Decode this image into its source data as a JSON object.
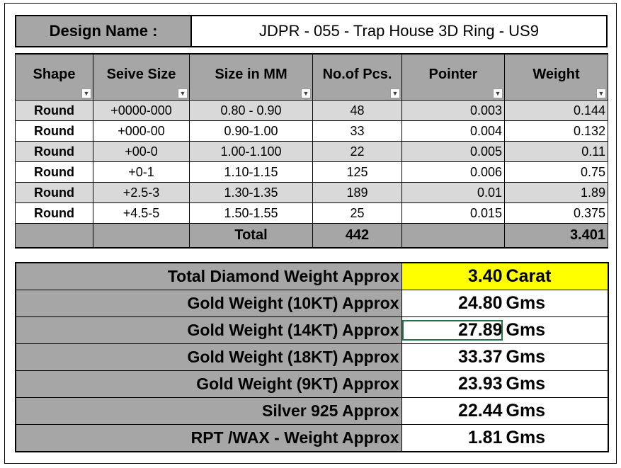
{
  "design": {
    "label": "Design Name :",
    "value": "JDPR - 055 - Trap House 3D Ring - US9"
  },
  "table": {
    "headers": [
      "Shape",
      "Seive Size",
      "Size in MM",
      "No.of Pcs.",
      "Pointer",
      "Weight"
    ],
    "rows": [
      {
        "shape": "Round",
        "seive": "+0000-000",
        "mm": "0.80 - 0.90",
        "pcs": "48",
        "pointer": "0.003",
        "weight": "0.144"
      },
      {
        "shape": "Round",
        "seive": "+000-00",
        "mm": "0.90-1.00",
        "pcs": "33",
        "pointer": "0.004",
        "weight": "0.132"
      },
      {
        "shape": "Round",
        "seive": "+00-0",
        "mm": "1.00-1.100",
        "pcs": "22",
        "pointer": "0.005",
        "weight": "0.11"
      },
      {
        "shape": "Round",
        "seive": "+0-1",
        "mm": "1.10-1.15",
        "pcs": "125",
        "pointer": "0.006",
        "weight": "0.75"
      },
      {
        "shape": "Round",
        "seive": "+2.5-3",
        "mm": "1.30-1.35",
        "pcs": "189",
        "pointer": "0.01",
        "weight": "1.89"
      },
      {
        "shape": "Round",
        "seive": "+4.5-5",
        "mm": "1.50-1.55",
        "pcs": "25",
        "pointer": "0.015",
        "weight": "0.375"
      }
    ],
    "total": {
      "label": "Total",
      "pcs": "442",
      "weight": "3.401"
    }
  },
  "summary": [
    {
      "label": "Total Diamond Weight Approx",
      "value": "3.40",
      "unit": "Carat"
    },
    {
      "label": "Gold Weight (10KT) Approx",
      "value": "24.80",
      "unit": "Gms"
    },
    {
      "label": "Gold Weight (14KT) Approx",
      "value": "27.89",
      "unit": "Gms"
    },
    {
      "label": "Gold Weight (18KT) Approx",
      "value": "33.37",
      "unit": "Gms"
    },
    {
      "label": "Gold Weight (9KT) Approx",
      "value": "23.93",
      "unit": "Gms"
    },
    {
      "label": "Silver 925 Approx",
      "value": "22.44",
      "unit": "Gms"
    },
    {
      "label": "RPT /WAX - Weight Approx",
      "value": "1.81",
      "unit": "Gms"
    }
  ],
  "colors": {
    "header_gray": "#a6a6a6",
    "row_shade": "#d9d9d9",
    "highlight": "#ffff00",
    "selection": "#217346"
  },
  "icons": {
    "filter": "filter-dropdown-icon",
    "filter_active": "filter-active-icon"
  }
}
